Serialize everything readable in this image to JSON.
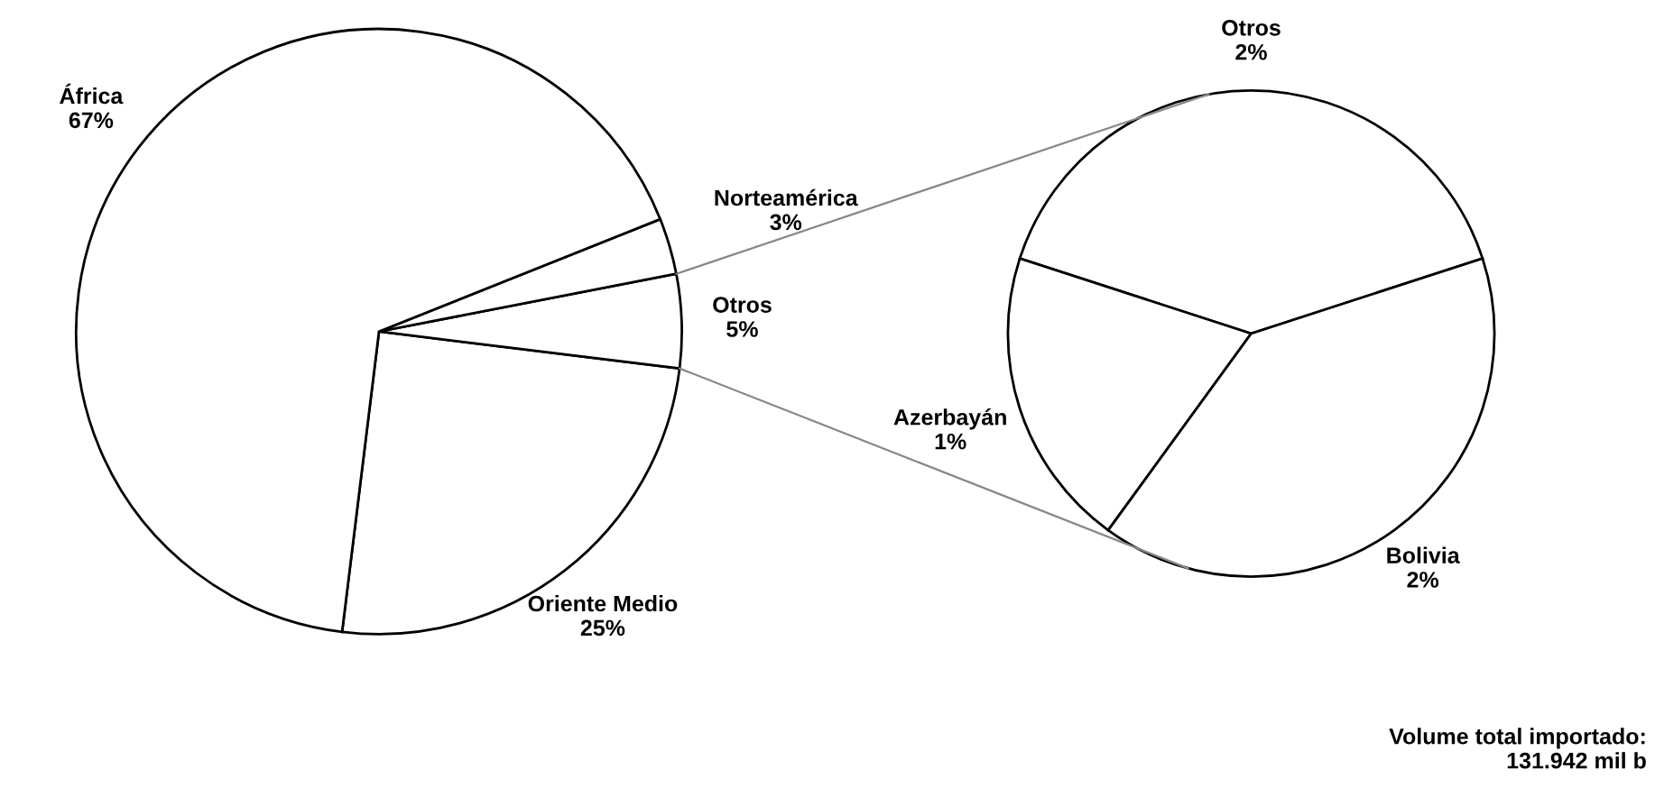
{
  "chart_data": [
    {
      "type": "pie",
      "categories": [
        "Oriente Medio",
        "Otros",
        "Norteamérica",
        "África"
      ],
      "values": [
        25,
        5,
        3,
        67
      ],
      "colors": [
        "#ffffff",
        "#ffffff",
        "#ffffff",
        "#ffffff"
      ],
      "value_labels": [
        "25%",
        "5%",
        "3%",
        "67%"
      ],
      "legend": false
    },
    {
      "type": "pie",
      "categories": [
        "Otros",
        "Azerbayán",
        "Bolivia"
      ],
      "values": [
        2,
        1,
        2
      ],
      "colors": [
        "#ffffff",
        "#ffffff",
        "#ffffff"
      ],
      "value_labels": [
        "2%",
        "1%",
        "2%"
      ],
      "legend": false,
      "annotations": [
        "Volume total importado:\n131.942 mil b"
      ]
    }
  ]
}
